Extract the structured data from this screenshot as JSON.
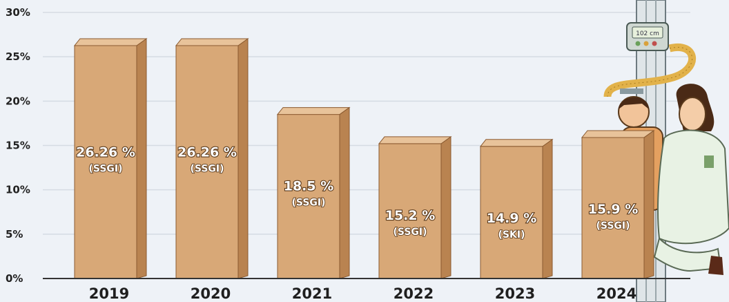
{
  "chart_data": {
    "type": "bar",
    "categories": [
      "2019",
      "2020",
      "2021",
      "2022",
      "2023",
      "2024"
    ],
    "values": [
      26.26,
      26.26,
      18.5,
      15.2,
      14.9,
      15.9
    ],
    "value_labels": [
      "26.26 %",
      "26.26 %",
      "18.5 %",
      "15.2 %",
      "14.9 %",
      "15.9 %"
    ],
    "sources": [
      "(SSGI)",
      "(SSGI)",
      "(SSGI)",
      "(SSGI)",
      "(SKI)",
      "(SSGI)"
    ],
    "y_ticks": [
      "0%",
      "5%",
      "10%",
      "15%",
      "20%",
      "25%",
      "30%"
    ],
    "ylim": [
      0,
      30
    ],
    "grid": true,
    "title": "",
    "xlabel": "",
    "ylabel": ""
  },
  "colors": {
    "background": "#eef2f7",
    "bar_front": "#d8a877",
    "bar_side": "#b98350",
    "bar_top": "#e8c39a",
    "gridline": "#d5dbe3",
    "axis": "#333333"
  },
  "illustration": {
    "icon": "nurse-measuring-child-height-icon",
    "meter_readout": "102 cm"
  }
}
